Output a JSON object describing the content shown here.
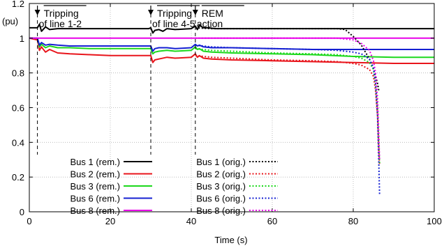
{
  "chart_data": {
    "type": "line",
    "title": "",
    "xlabel": "Time (s)",
    "ylabel": "(pu)",
    "xlim": [
      0,
      100
    ],
    "ylim": [
      0,
      1.2
    ],
    "xticks": [
      0,
      20,
      40,
      60,
      80,
      100
    ],
    "yticks": [
      0,
      0.2,
      0.4,
      0.6,
      0.8,
      1,
      1.2
    ],
    "ytick_labels": [
      "0",
      "0.2",
      "0.4",
      "0.6",
      "0.8",
      "1",
      "1.2"
    ],
    "grid": true,
    "legend_position": "bottom-center",
    "annotations": [
      {
        "text_lines": [
          "Tripping",
          "of line 1-2"
        ],
        "x": 2
      },
      {
        "text_lines": [
          "Tripping",
          "of line 4-5"
        ],
        "x": 30
      },
      {
        "text_lines": [
          "REM",
          "action"
        ],
        "x": 41
      }
    ],
    "series": [
      {
        "name": "Bus 1 (rem.)",
        "color": "#000000",
        "style": "solid",
        "x": [
          0,
          2,
          2.5,
          3,
          4,
          5,
          7,
          10,
          15,
          20,
          25,
          29.5,
          30,
          30.5,
          31,
          32,
          33,
          34,
          36,
          40,
          41,
          41.5,
          42,
          43,
          44,
          46,
          50,
          60,
          70,
          80,
          90,
          100
        ],
        "y": [
          1.06,
          1.06,
          1.08,
          1.04,
          1.065,
          1.05,
          1.055,
          1.055,
          1.055,
          1.055,
          1.055,
          1.055,
          1.06,
          1.03,
          1.045,
          1.05,
          1.04,
          1.055,
          1.05,
          1.055,
          1.07,
          1.05,
          1.075,
          1.06,
          1.06,
          1.055,
          1.055,
          1.055,
          1.055,
          1.055,
          1.055,
          1.055
        ]
      },
      {
        "name": "Bus 2 (rem.)",
        "color": "#e8141b",
        "style": "solid",
        "x": [
          0,
          2,
          2.5,
          3,
          4,
          5,
          7,
          10,
          15,
          20,
          25,
          29.5,
          30,
          30.5,
          31,
          32,
          34,
          36,
          40,
          41,
          41.5,
          42,
          43,
          45,
          50,
          60,
          70,
          80,
          90,
          100
        ],
        "y": [
          1.0,
          0.99,
          0.93,
          0.95,
          0.92,
          0.935,
          0.915,
          0.91,
          0.905,
          0.9,
          0.9,
          0.9,
          0.9,
          0.86,
          0.875,
          0.88,
          0.89,
          0.885,
          0.89,
          0.91,
          0.89,
          0.9,
          0.885,
          0.88,
          0.875,
          0.87,
          0.865,
          0.86,
          0.855,
          0.855
        ]
      },
      {
        "name": "Bus 3 (rem.)",
        "color": "#1bd81b",
        "style": "solid",
        "x": [
          0,
          2,
          2.5,
          3,
          4,
          5,
          7,
          10,
          15,
          20,
          25,
          29.5,
          30,
          30.5,
          31,
          32,
          34,
          36,
          40,
          41,
          41.5,
          42,
          43,
          45,
          50,
          60,
          70,
          80,
          90,
          100
        ],
        "y": [
          1.0,
          1.0,
          0.95,
          0.965,
          0.945,
          0.955,
          0.945,
          0.945,
          0.94,
          0.94,
          0.94,
          0.94,
          0.94,
          0.91,
          0.92,
          0.925,
          0.93,
          0.925,
          0.93,
          0.95,
          0.935,
          0.94,
          0.925,
          0.92,
          0.915,
          0.91,
          0.905,
          0.895,
          0.89,
          0.89
        ]
      },
      {
        "name": "Bus 6 (rem.)",
        "color": "#1420d2",
        "style": "solid",
        "x": [
          0,
          2,
          2.5,
          3,
          4,
          5,
          7,
          10,
          15,
          20,
          25,
          29.5,
          30,
          30.5,
          31,
          32,
          34,
          36,
          40,
          41,
          41.5,
          42,
          43,
          45,
          50,
          60,
          70,
          80,
          90,
          100
        ],
        "y": [
          1.0,
          1.0,
          0.96,
          0.975,
          0.96,
          0.965,
          0.96,
          0.955,
          0.955,
          0.955,
          0.955,
          0.955,
          0.955,
          0.925,
          0.94,
          0.945,
          0.945,
          0.94,
          0.945,
          0.965,
          0.955,
          0.96,
          0.95,
          0.945,
          0.945,
          0.94,
          0.935,
          0.935,
          0.935,
          0.935
        ]
      },
      {
        "name": "Bus 8 (rem.)",
        "color": "#e800e8",
        "style": "solid",
        "x": [
          0,
          100
        ],
        "y": [
          1.0,
          1.0
        ]
      },
      {
        "name": "Bus 1 (orig.)",
        "color": "#000000",
        "style": "dotted",
        "x": [
          41,
          45,
          50,
          60,
          70,
          76,
          78,
          80,
          82,
          84,
          85,
          86,
          86.3
        ],
        "y": [
          1.06,
          1.055,
          1.055,
          1.055,
          1.055,
          1.055,
          1.05,
          1.01,
          0.96,
          0.88,
          0.82,
          0.74,
          0.7
        ]
      },
      {
        "name": "Bus 2 (orig.)",
        "color": "#e8141b",
        "style": "dotted",
        "x": [
          41,
          45,
          50,
          60,
          70,
          76,
          80,
          82,
          84,
          85,
          85.5,
          86,
          86.3,
          86.5
        ],
        "y": [
          0.9,
          0.89,
          0.885,
          0.875,
          0.87,
          0.865,
          0.855,
          0.845,
          0.82,
          0.78,
          0.7,
          0.55,
          0.35,
          0.27
        ]
      },
      {
        "name": "Bus 3 (orig.)",
        "color": "#1bd81b",
        "style": "dotted",
        "x": [
          41,
          45,
          50,
          60,
          70,
          76,
          80,
          82,
          84,
          85,
          85.5,
          86,
          86.3,
          86.5
        ],
        "y": [
          0.94,
          0.93,
          0.925,
          0.915,
          0.91,
          0.905,
          0.895,
          0.885,
          0.86,
          0.82,
          0.74,
          0.6,
          0.4,
          0.28
        ]
      },
      {
        "name": "Bus 6 (orig.)",
        "color": "#1420d2",
        "style": "dotted",
        "x": [
          41,
          45,
          50,
          60,
          70,
          76,
          80,
          82,
          84,
          85,
          85.5,
          86,
          86.3,
          86.5
        ],
        "y": [
          0.96,
          0.95,
          0.945,
          0.94,
          0.935,
          0.93,
          0.92,
          0.91,
          0.88,
          0.83,
          0.74,
          0.55,
          0.3,
          0.1
        ]
      },
      {
        "name": "Bus 8 (orig.)",
        "color": "#e800e8",
        "style": "dotted",
        "x": [
          41,
          60,
          76,
          80,
          82,
          84,
          85,
          85.5,
          86,
          86.3,
          86.5
        ],
        "y": [
          1.0,
          1.0,
          1.0,
          0.99,
          0.97,
          0.93,
          0.87,
          0.8,
          0.65,
          0.45,
          0.3
        ]
      }
    ]
  }
}
